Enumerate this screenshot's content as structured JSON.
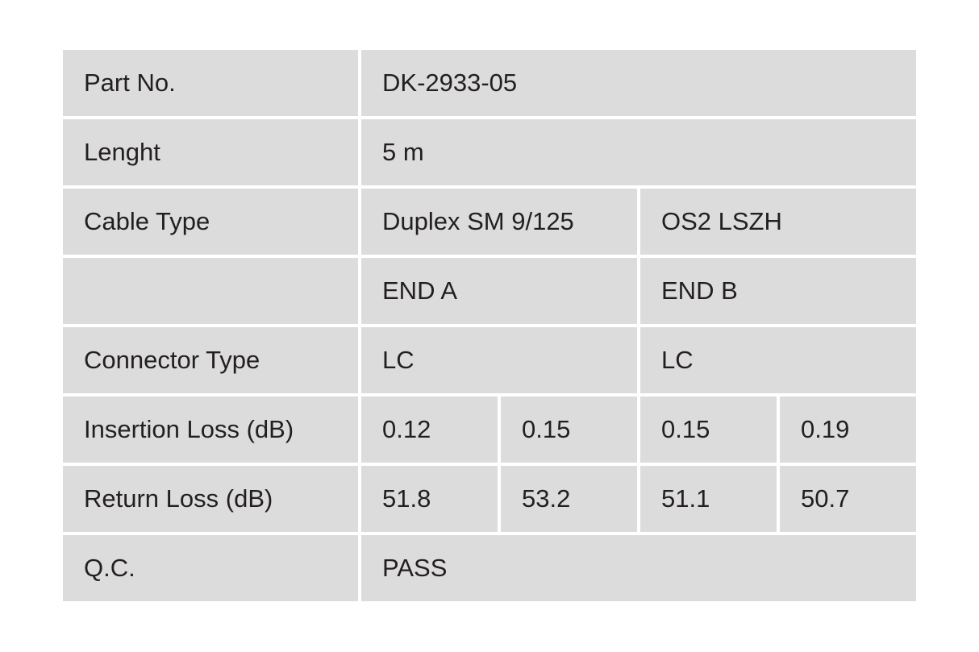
{
  "table": {
    "rows": [
      [
        "Part No.",
        "DK-2933-05"
      ],
      [
        "Lenght",
        "5 m"
      ],
      [
        "Cable Type",
        "Duplex SM 9/125",
        "OS2 LSZH"
      ],
      [
        null,
        "END A",
        "END B"
      ],
      [
        "Connector Type",
        "LC",
        "LC"
      ],
      [
        "Insertion Loss (dB)",
        "0.12",
        "0.15",
        "0.15",
        "0.19"
      ],
      [
        "Return Loss (dB)",
        "51.8",
        "53.2",
        "51.1",
        "50.7"
      ],
      [
        "Q.C.",
        "PASS"
      ]
    ]
  }
}
